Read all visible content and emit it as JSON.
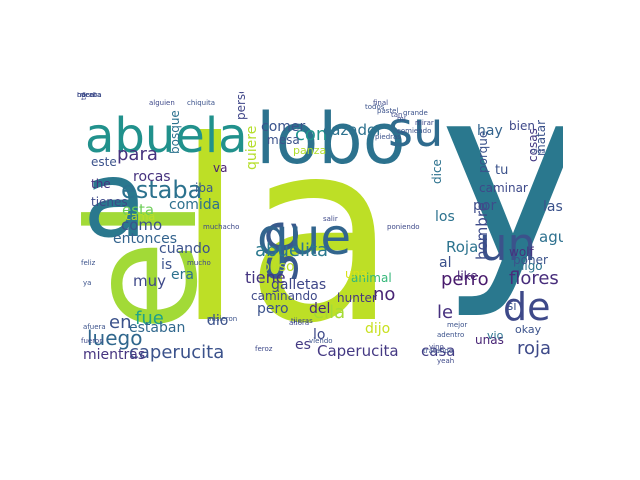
{
  "words": [
    {
      "text": "y",
      "color": "#2a788e",
      "rotate": false
    },
    {
      "text": "la",
      "color": "#bddf26",
      "rotate": false
    },
    {
      "text": "el",
      "color": "#a2da37",
      "rotate": true
    },
    {
      "text": "a",
      "color": "#2a788e",
      "rotate": false
    },
    {
      "text": "lobo",
      "color": "#2c728e",
      "rotate": false
    },
    {
      "text": "abuela",
      "color": "#21918c",
      "rotate": false
    },
    {
      "text": "su",
      "color": "#2f6b8e",
      "rotate": false
    },
    {
      "text": "se",
      "color": "#38598c",
      "rotate": true
    },
    {
      "text": "que",
      "color": "#32658e",
      "rotate": false
    },
    {
      "text": "un",
      "color": "#3b528b",
      "rotate": false
    },
    {
      "text": "de",
      "color": "#3e4989",
      "rotate": false
    },
    {
      "text": "estaba",
      "color": "#2c728e",
      "rotate": false
    },
    {
      "text": "caperucita",
      "color": "#3b528b",
      "rotate": false
    },
    {
      "text": "Caperucita",
      "color": "#443983",
      "rotate": false
    },
    {
      "text": "casa",
      "color": "#433e85",
      "rotate": false
    },
    {
      "text": "roja",
      "color": "#3e4a89",
      "rotate": false
    },
    {
      "text": "luego",
      "color": "#30678d",
      "rotate": false
    },
    {
      "text": "para",
      "color": "#46327e",
      "rotate": false
    },
    {
      "text": "con",
      "color": "#1f948c",
      "rotate": false
    },
    {
      "text": "cazador",
      "color": "#2c718e",
      "rotate": false
    },
    {
      "text": "comer",
      "color": "#3a548c",
      "rotate": false
    },
    {
      "text": "panza",
      "color": "#b2dd2d",
      "rotate": false
    },
    {
      "text": "rocas",
      "color": "#46327e",
      "rotate": false
    },
    {
      "text": "comida",
      "color": "#2d708e",
      "rotate": false
    },
    {
      "text": "esta",
      "color": "#6ece58",
      "rotate": false
    },
    {
      "text": "cama",
      "color": "#bddf26",
      "rotate": false
    },
    {
      "text": "como",
      "color": "#3b528b",
      "rotate": false
    },
    {
      "text": "entonces",
      "color": "#33638d",
      "rotate": false
    },
    {
      "text": "abuelita",
      "color": "#2a788e",
      "rotate": false
    },
    {
      "text": "en",
      "color": "#3b528b",
      "rotate": false
    },
    {
      "text": "fue",
      "color": "#1fa187",
      "rotate": false
    },
    {
      "text": "no",
      "color": "#482475",
      "rotate": false
    },
    {
      "text": "dijo",
      "color": "#c8e020",
      "rotate": false
    },
    {
      "text": "ella",
      "color": "#a5db36",
      "rotate": false
    },
    {
      "text": "le",
      "color": "#46307e",
      "rotate": false
    },
    {
      "text": "los",
      "color": "#2c728e",
      "rotate": false
    },
    {
      "text": "las",
      "color": "#3b528b",
      "rotate": false
    },
    {
      "text": "agua",
      "color": "#2d708e",
      "rotate": false
    },
    {
      "text": "por",
      "color": "#3e4c8a",
      "rotate": false
    },
    {
      "text": "hay",
      "color": "#33638d",
      "rotate": false
    },
    {
      "text": "al",
      "color": "#3b518b",
      "rotate": false
    },
    {
      "text": "Roja",
      "color": "#2c738e",
      "rotate": false
    },
    {
      "text": "perro",
      "color": "#481a6c",
      "rotate": false
    },
    {
      "text": "flores",
      "color": "#472d7b",
      "rotate": false
    },
    {
      "text": "hombre",
      "color": "#3e4c8a",
      "rotate": true
    },
    {
      "text": "animal",
      "color": "#35b779",
      "rotate": false
    },
    {
      "text": "hunter",
      "color": "#453781",
      "rotate": false
    },
    {
      "text": "una",
      "color": "#d8e219",
      "rotate": false
    },
    {
      "text": "galletas",
      "color": "#3f4788",
      "rotate": false
    },
    {
      "text": "puso",
      "color": "#b8de29",
      "rotate": false
    },
    {
      "text": "pero",
      "color": "#3b528b",
      "rotate": false
    },
    {
      "text": "del",
      "color": "#482878",
      "rotate": false
    },
    {
      "text": "lo",
      "color": "#3e4989",
      "rotate": false
    },
    {
      "text": "es",
      "color": "#443a83",
      "rotate": false
    },
    {
      "text": "is",
      "color": "#3b528b",
      "rotate": false
    },
    {
      "text": "muy",
      "color": "#3e4989",
      "rotate": false
    },
    {
      "text": "cuando",
      "color": "#3b528b",
      "rotate": false
    },
    {
      "text": "era",
      "color": "#2c728e",
      "rotate": false
    },
    {
      "text": "dio",
      "color": "#3b528b",
      "rotate": false
    },
    {
      "text": "estaban",
      "color": "#31688e",
      "rotate": false
    },
    {
      "text": "mientras",
      "color": "#463480",
      "rotate": false
    },
    {
      "text": "caminando",
      "color": "#3e4989",
      "rotate": false
    },
    {
      "text": "tiene",
      "color": "#453581",
      "rotate": false
    },
    {
      "text": "quiere",
      "color": "#b5de2b",
      "rotate": true
    },
    {
      "text": "persona",
      "color": "#404688",
      "rotate": true
    },
    {
      "text": "bosque",
      "color": "#2c728e",
      "rotate": true
    },
    {
      "text": "va",
      "color": "#481f70",
      "rotate": false
    },
    {
      "text": "iba",
      "color": "#38598c",
      "rotate": false
    },
    {
      "text": "este",
      "color": "#3b528b",
      "rotate": false
    },
    {
      "text": "the",
      "color": "#46337f",
      "rotate": false
    },
    {
      "text": "tienes",
      "color": "#3e4989",
      "rotate": false
    },
    {
      "text": "mesa",
      "color": "#3b528b",
      "rotate": false
    },
    {
      "text": "unas",
      "color": "#482475",
      "rotate": false
    },
    {
      "text": "okay",
      "color": "#3b528b",
      "rotate": false
    },
    {
      "text": "bien",
      "color": "#3e4989",
      "rotate": false
    },
    {
      "text": "like",
      "color": "#482475",
      "rotate": false
    },
    {
      "text": "wolf",
      "color": "#46327e",
      "rotate": false
    },
    {
      "text": "algo",
      "color": "#2c728e",
      "rotate": false
    },
    {
      "text": "poner",
      "color": "#3b528b",
      "rotate": false
    },
    {
      "text": "vio",
      "color": "#2c728e",
      "rotate": false
    },
    {
      "text": "caminar",
      "color": "#3e4989",
      "rotate": false
    },
    {
      "text": "tu",
      "color": "#3b528b",
      "rotate": false
    },
    {
      "text": "porque",
      "color": "#3b528b",
      "rotate": true
    },
    {
      "text": "cosas",
      "color": "#443983",
      "rotate": true
    },
    {
      "text": "matar",
      "color": "#3b528b",
      "rotate": true
    },
    {
      "text": "dice",
      "color": "#2c728e",
      "rotate": true
    },
    {
      "text": "si",
      "color": "#3b528b",
      "rotate": false
    },
    {
      "text": "todo",
      "color": "#3e4989",
      "rotate": true
    },
    {
      "text": "feliz",
      "color": "#3b528b",
      "rotate": false
    },
    {
      "text": "alguien",
      "color": "#3e4989",
      "rotate": false
    },
    {
      "text": "chiquita",
      "color": "#3b528b",
      "rotate": false
    },
    {
      "text": "muchacho",
      "color": "#3e4989",
      "rotate": false
    },
    {
      "text": "fueron",
      "color": "#3e4989",
      "rotate": false
    },
    {
      "text": "adentro",
      "color": "#3b528b",
      "rotate": false
    },
    {
      "text": "tijeras",
      "color": "#3e4989",
      "rotate": false
    },
    {
      "text": "mejor",
      "color": "#3b528b",
      "rotate": false
    },
    {
      "text": "final",
      "color": "#3e4989",
      "rotate": false
    },
    {
      "text": "grande",
      "color": "#3b528b",
      "rotate": false
    },
    {
      "text": "mirar",
      "color": "#3e4989",
      "rotate": false
    },
    {
      "text": "ojos",
      "color": "#3b528b",
      "rotate": false
    },
    {
      "text": "yeah",
      "color": "#3e4989",
      "rotate": false
    },
    {
      "text": "todos",
      "color": "#3b528b",
      "rotate": false
    },
    {
      "text": "salir",
      "color": "#3e4989",
      "rotate": false
    },
    {
      "text": "viendo",
      "color": "#3b528b",
      "rotate": false
    },
    {
      "text": "vino",
      "color": "#3e4989",
      "rotate": false
    },
    {
      "text": "pusieron",
      "color": "#3b528b",
      "rotate": false
    },
    {
      "text": "ahora",
      "color": "#3e4989",
      "rotate": false
    },
    {
      "text": "comiendo",
      "color": "#3b528b",
      "rotate": false
    },
    {
      "text": "tan",
      "color": "#3e4989",
      "rotate": false
    },
    {
      "text": "ya",
      "color": "#3b528b",
      "rotate": false
    },
    {
      "text": "mucho",
      "color": "#3e4989",
      "rotate": false
    },
    {
      "text": "afuera",
      "color": "#3b528b",
      "rotate": false
    },
    {
      "text": "feroz",
      "color": "#3e4989",
      "rotate": false
    },
    {
      "text": "pastel",
      "color": "#3b528b",
      "rotate": false
    },
    {
      "text": "mi",
      "color": "#3e4989",
      "rotate": false
    },
    {
      "text": "piedras",
      "color": "#3b528b",
      "rotate": false
    },
    {
      "text": "poniendo",
      "color": "#3e4989",
      "rotate": false
    },
    {
      "text": "tratando",
      "color": "#3b528b",
      "rotate": false
    },
    {
      "text": "miraba",
      "color": "#3e4989",
      "rotate": false
    },
    {
      "text": "cuenta",
      "color": "#3b528b",
      "rotate": false
    },
    {
      "text": "hacer",
      "color": "#3e4989",
      "rotate": false
    }
  ]
}
